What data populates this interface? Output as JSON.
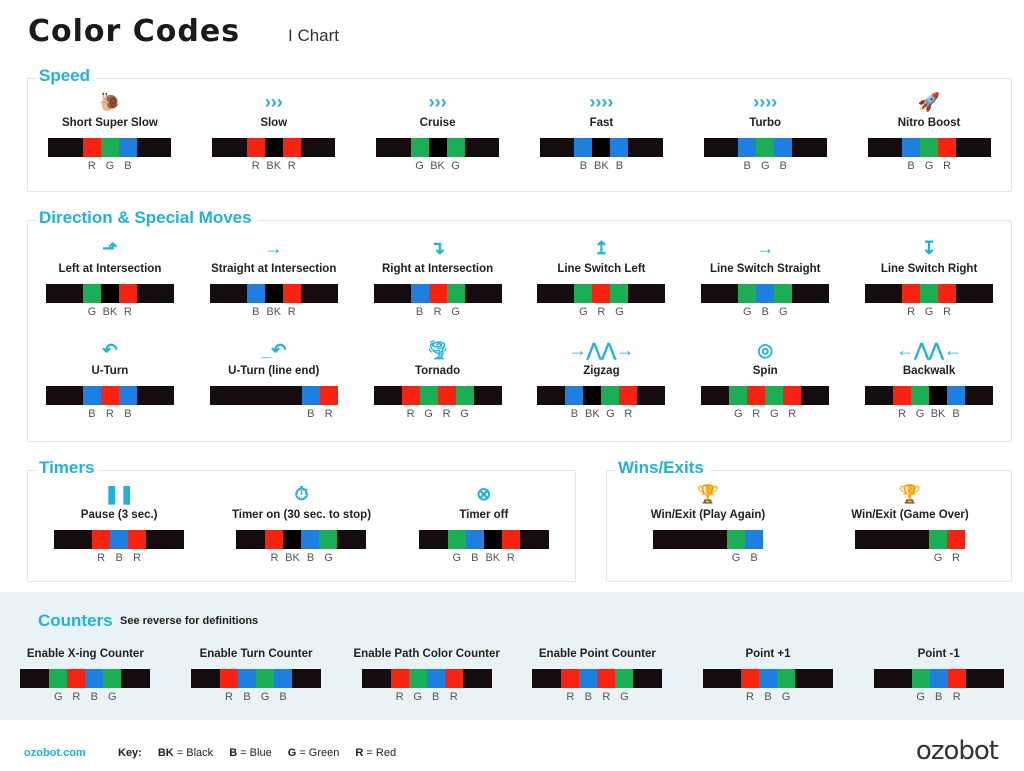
{
  "header": {
    "title": "Color Codes",
    "subtitle": "I Chart"
  },
  "colors": {
    "R": "#f5230f",
    "G": "#1aaf54",
    "B": "#1e7fe0",
    "BK": "#000000",
    "bar": "#140c0e",
    "accent": "#1fb3d9"
  },
  "sections": {
    "speed": {
      "title": "Speed",
      "rows": [
        [
          {
            "name": "Short Super Slow",
            "icon": "snail-icon",
            "glyph": "🐌",
            "codes": [
              "R",
              "G",
              "B"
            ]
          },
          {
            "name": "Slow",
            "icon": "speed-1-icon",
            "glyph": "›››",
            "codes": [
              "R",
              "BK",
              "R"
            ]
          },
          {
            "name": "Cruise",
            "icon": "speed-2-icon",
            "glyph": "›››",
            "codes": [
              "G",
              "BK",
              "G"
            ]
          },
          {
            "name": "Fast",
            "icon": "speed-3-icon",
            "glyph": "››››",
            "codes": [
              "B",
              "BK",
              "B"
            ]
          },
          {
            "name": "Turbo",
            "icon": "speed-4-icon",
            "glyph": "››››",
            "codes": [
              "B",
              "G",
              "B"
            ]
          },
          {
            "name": "Nitro Boost",
            "icon": "rocket-icon",
            "glyph": "🚀",
            "codes": [
              "B",
              "G",
              "R"
            ]
          }
        ]
      ]
    },
    "direction": {
      "title": "Direction & Special Moves",
      "rows": [
        [
          {
            "name": "Left at Intersection",
            "icon": "turn-left-icon",
            "glyph": "⬏",
            "codes": [
              "G",
              "BK",
              "R"
            ]
          },
          {
            "name": "Straight at Intersection",
            "icon": "arrow-right-icon",
            "glyph": "→",
            "codes": [
              "B",
              "BK",
              "R"
            ]
          },
          {
            "name": "Right at Intersection",
            "icon": "turn-right-icon",
            "glyph": "↴",
            "codes": [
              "B",
              "R",
              "G"
            ]
          },
          {
            "name": "Line Switch Left",
            "icon": "line-switch-left-icon",
            "glyph": "↥",
            "codes": [
              "G",
              "R",
              "G"
            ]
          },
          {
            "name": "Line Switch Straight",
            "icon": "line-switch-straight-icon",
            "glyph": "→",
            "codes": [
              "G",
              "B",
              "G"
            ]
          },
          {
            "name": "Line Switch Right",
            "icon": "line-switch-right-icon",
            "glyph": "↧",
            "codes": [
              "R",
              "G",
              "R"
            ]
          }
        ],
        [
          {
            "name": "U-Turn",
            "icon": "u-turn-icon",
            "glyph": "↶",
            "codes": [
              "B",
              "R",
              "B"
            ]
          },
          {
            "name": "U-Turn (line end)",
            "icon": "u-turn-line-end-icon",
            "glyph": "_↶",
            "codes": [
              "B",
              "R"
            ],
            "end": true
          },
          {
            "name": "Tornado",
            "icon": "tornado-icon",
            "glyph": "🌪",
            "codes": [
              "R",
              "G",
              "R",
              "G"
            ]
          },
          {
            "name": "Zigzag",
            "icon": "zigzag-icon",
            "glyph": "→⋀⋀→",
            "codes": [
              "B",
              "BK",
              "G",
              "R"
            ]
          },
          {
            "name": "Spin",
            "icon": "spin-icon",
            "glyph": "◎",
            "codes": [
              "G",
              "R",
              "G",
              "R"
            ]
          },
          {
            "name": "Backwalk",
            "icon": "backwalk-icon",
            "glyph": "←⋀⋀←",
            "codes": [
              "R",
              "G",
              "BK",
              "B"
            ]
          }
        ]
      ]
    },
    "timers": {
      "title": "Timers",
      "rows": [
        [
          {
            "name": "Pause (3 sec.)",
            "icon": "pause-icon",
            "glyph": "❚❚",
            "codes": [
              "R",
              "B",
              "R"
            ]
          },
          {
            "name": "Timer on (30 sec. to stop)",
            "icon": "stopwatch-icon",
            "glyph": "⏱",
            "codes": [
              "R",
              "BK",
              "B",
              "G"
            ]
          },
          {
            "name": "Timer off",
            "icon": "stopwatch-off-icon",
            "glyph": "⊗",
            "codes": [
              "G",
              "B",
              "BK",
              "R"
            ]
          }
        ]
      ]
    },
    "wins": {
      "title": "Wins/Exits",
      "rows": [
        [
          {
            "name": "Win/Exit (Play Again)",
            "icon": "trophy-replay-icon",
            "glyph": "🏆",
            "codes": [
              "G",
              "B"
            ],
            "end": true
          },
          {
            "name": "Win/Exit (Game Over)",
            "icon": "trophy-x-icon",
            "glyph": "🏆",
            "codes": [
              "G",
              "R"
            ],
            "end": true
          }
        ]
      ]
    },
    "counters": {
      "title": "Counters",
      "note": "See reverse for definitions",
      "rows": [
        [
          {
            "name": "Enable X-ing  Counter",
            "codes": [
              "G",
              "R",
              "B",
              "G"
            ]
          },
          {
            "name": "Enable Turn Counter",
            "codes": [
              "R",
              "B",
              "G",
              "B"
            ]
          },
          {
            "name": "Enable Path Color Counter",
            "codes": [
              "R",
              "G",
              "B",
              "R"
            ]
          },
          {
            "name": "Enable Point Counter",
            "codes": [
              "R",
              "B",
              "R",
              "G"
            ]
          },
          {
            "name": "Point +1",
            "codes": [
              "R",
              "B",
              "G"
            ]
          },
          {
            "name": "Point -1",
            "codes": [
              "G",
              "B",
              "R"
            ]
          }
        ]
      ]
    }
  },
  "footer": {
    "link": "ozobot.com",
    "key_label": "Key:",
    "key": [
      {
        "code": "BK",
        "meaning": "= Black"
      },
      {
        "code": "B",
        "meaning": "= Blue"
      },
      {
        "code": "G",
        "meaning": "= Green"
      },
      {
        "code": "R",
        "meaning": "= Red"
      }
    ],
    "logo": "ozobot"
  }
}
